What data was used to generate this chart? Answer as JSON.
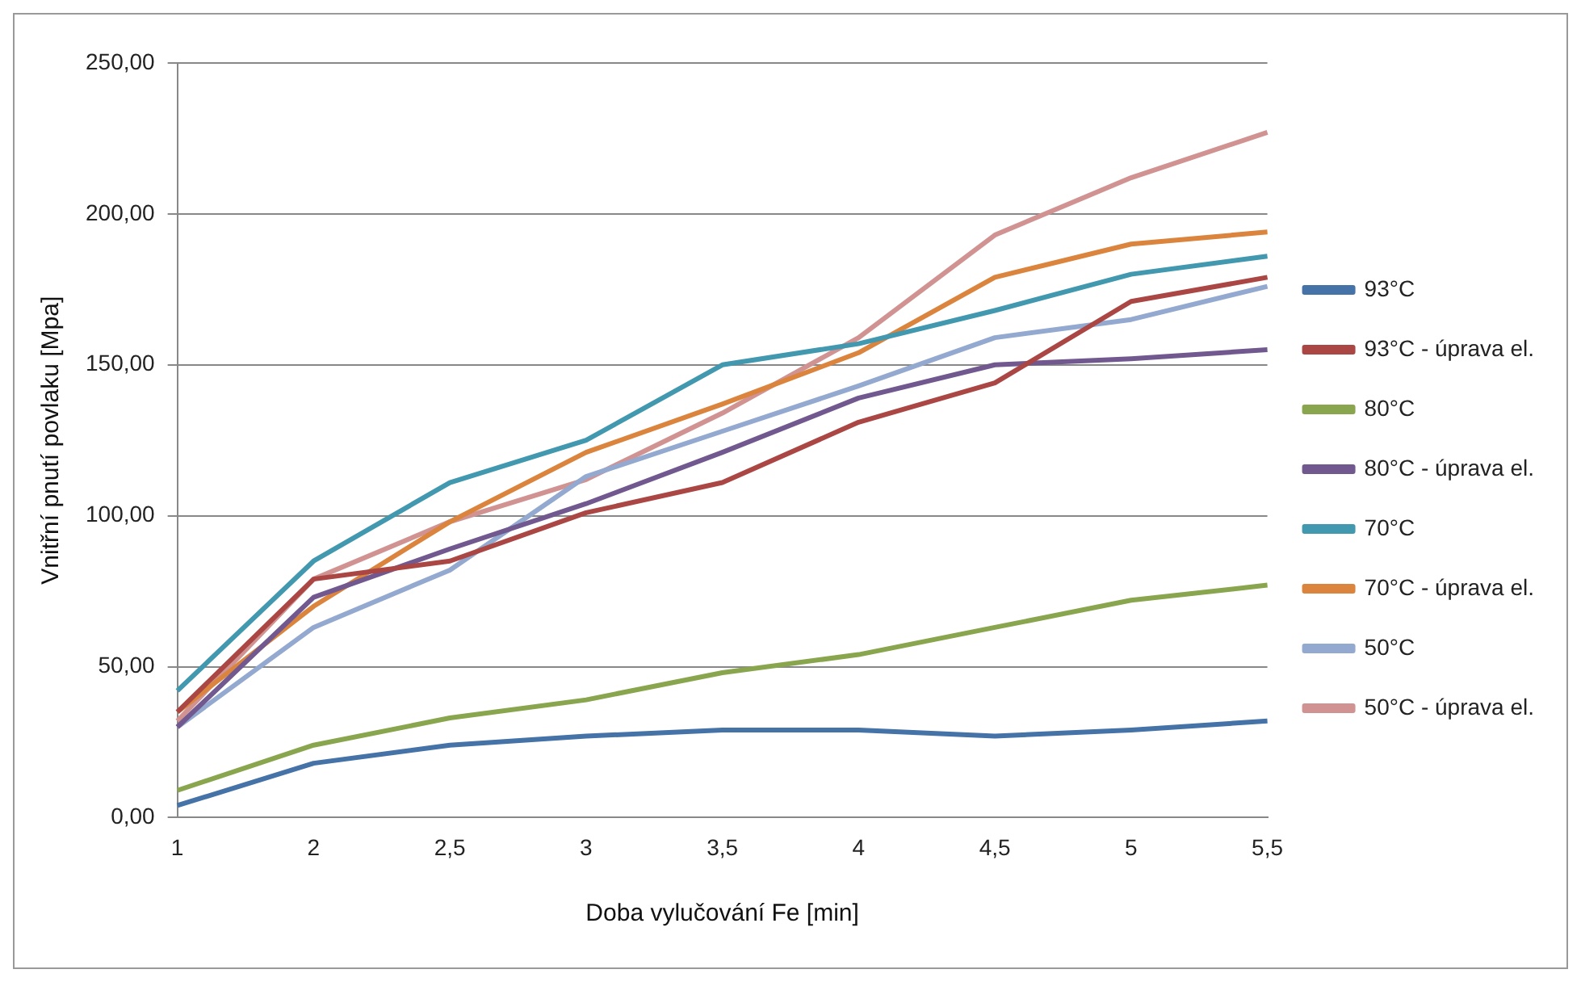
{
  "chart_data": {
    "type": "line",
    "xlabel": "Doba vylučování Fe [min]",
    "ylabel": "Vnitřní pnutí povlaku [Mpa]",
    "categories": [
      "1",
      "2",
      "2,5",
      "3",
      "3,5",
      "4",
      "4,5",
      "5",
      "5,5"
    ],
    "series": [
      {
        "name": "93°C",
        "color": "#4572a7",
        "values": [
          4,
          18,
          24,
          27,
          29,
          29,
          27,
          29,
          32
        ]
      },
      {
        "name": "93°C - úprava el.",
        "color": "#aa4643",
        "values": [
          35,
          79,
          85,
          101,
          111,
          131,
          144,
          171,
          179
        ]
      },
      {
        "name": "80°C",
        "color": "#89a54e",
        "values": [
          9,
          24,
          33,
          39,
          48,
          54,
          63,
          72,
          77
        ]
      },
      {
        "name": "80°C - úprava el.",
        "color": "#71588f",
        "values": [
          30,
          73,
          89,
          104,
          121,
          139,
          150,
          152,
          155
        ]
      },
      {
        "name": "70°C",
        "color": "#4198af",
        "values": [
          42,
          85,
          111,
          125,
          150,
          157,
          168,
          180,
          186
        ]
      },
      {
        "name": "70°C - úprava el.",
        "color": "#db843d",
        "values": [
          35,
          70,
          98,
          121,
          137,
          154,
          179,
          190,
          194
        ]
      },
      {
        "name": "50°C",
        "color": "#93a9cf",
        "values": [
          30,
          63,
          82,
          113,
          128,
          143,
          159,
          165,
          176
        ]
      },
      {
        "name": "50°C - úprava el.",
        "color": "#d19392",
        "values": [
          32,
          79,
          98,
          112,
          134,
          159,
          193,
          212,
          227
        ]
      }
    ],
    "ylim": [
      0,
      250
    ],
    "yticks": [
      {
        "value": 0,
        "label": "0,00"
      },
      {
        "value": 50,
        "label": "50,00"
      },
      {
        "value": 100,
        "label": "100,00"
      },
      {
        "value": 150,
        "label": "150,00"
      },
      {
        "value": 200,
        "label": "200,00"
      },
      {
        "value": 250,
        "label": "250,00"
      }
    ],
    "grid": "y",
    "legend": "right",
    "marker": "none",
    "line_style": "solid"
  }
}
